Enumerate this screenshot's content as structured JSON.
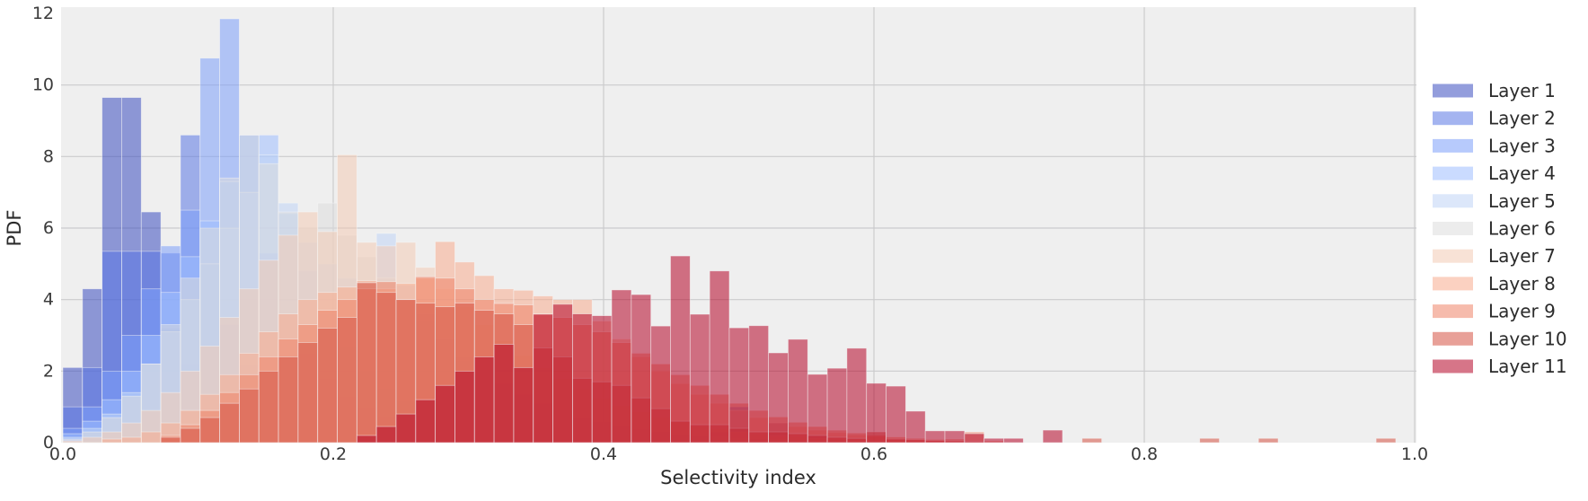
{
  "chart_data": {
    "type": "bar",
    "subtype": "overlapping-histograms",
    "title": "",
    "xlabel": "Selectivity index",
    "ylabel": "PDF",
    "xlim": [
      0.0,
      1.0
    ],
    "ylim": [
      0,
      12
    ],
    "xticks": {
      "values": [
        0.0,
        0.2,
        0.4,
        0.6,
        0.8,
        1.0
      ],
      "labels": [
        "0.0",
        "0.2",
        "0.4",
        "0.6",
        "0.8",
        "1.0"
      ]
    },
    "yticks": {
      "values": [
        0,
        2,
        4,
        6,
        8,
        10,
        12
      ],
      "labels": [
        "0",
        "2",
        "4",
        "6",
        "8",
        "10",
        "12"
      ]
    },
    "grid": true,
    "legend_position": "right",
    "bar_alpha": 0.55,
    "plot_bg": "#efefef",
    "grid_color": "#cbcbcd",
    "tick_color": "#3a3a3a",
    "bin_width": 0.0145,
    "series": [
      {
        "name": "Layer 1",
        "color": "#3b4cc0",
        "start": 0.0,
        "values": [
          2.1,
          4.3,
          9.65,
          9.65,
          6.45,
          3.2,
          2.2,
          1.5,
          1.05,
          0.75,
          0.55,
          0.4,
          0.3,
          0.25,
          0.2,
          0.15,
          0.12,
          0.1,
          0.08,
          0.07,
          0.06,
          0.05,
          0.05,
          0.04,
          0.04,
          0.03,
          0.03,
          0.02
        ]
      },
      {
        "name": "Layer 2",
        "color": "#5977e3",
        "start": 0.0,
        "values": [
          1.0,
          2.1,
          5.35,
          5.35,
          5.35,
          5.3,
          8.6,
          5.0,
          3.3,
          2.2,
          1.5,
          1.1,
          0.8,
          0.6,
          0.45,
          0.35,
          0.3,
          0.25,
          0.2,
          0.18,
          0.15,
          0.12,
          0.1,
          0.1,
          0.08,
          0.08,
          0.07,
          0.06,
          0.06,
          0.05,
          0.05,
          0.04,
          0.04,
          0.3,
          1.0,
          0.1,
          0.55,
          0.05,
          0.2,
          0.05
        ]
      },
      {
        "name": "Layer 3",
        "color": "#7b9ff9",
        "start": 0.0,
        "values": [
          0.4,
          1.0,
          2.0,
          3.0,
          4.3,
          5.5,
          6.5,
          10.75,
          11.85,
          8.6,
          5.3,
          3.6,
          2.5,
          1.8,
          1.3,
          1.0,
          0.75,
          0.6,
          0.5,
          0.4,
          0.32,
          0.26,
          0.2,
          0.17,
          0.14,
          0.11,
          0.09,
          0.08,
          0.06,
          0.05
        ]
      },
      {
        "name": "Layer 4",
        "color": "#9ebeff",
        "start": 0.0,
        "values": [
          0.25,
          0.6,
          1.2,
          2.0,
          3.0,
          4.2,
          5.2,
          6.2,
          7.3,
          8.6,
          8.6,
          6.4,
          4.8,
          3.6,
          2.7,
          2.0,
          1.5,
          1.15,
          0.9,
          0.7,
          0.55,
          0.45,
          0.36,
          0.3,
          0.24,
          0.2,
          0.16,
          0.13,
          0.1,
          0.09,
          0.07,
          0.06,
          0.05,
          0.04
        ]
      },
      {
        "name": "Layer 5",
        "color": "#c0d4f5",
        "start": 0.0,
        "values": [
          0.15,
          0.4,
          0.8,
          1.4,
          2.2,
          3.1,
          4.0,
          5.0,
          6.0,
          7.0,
          8.05,
          6.7,
          5.6,
          5.0,
          4.6,
          4.5,
          5.85,
          4.4,
          3.6,
          2.9,
          2.3,
          1.8,
          1.45,
          1.15,
          0.9,
          0.72,
          0.58,
          0.46,
          0.37,
          0.3,
          0.24,
          0.19,
          0.15,
          0.12,
          0.1,
          0.08
        ]
      },
      {
        "name": "Layer 6",
        "color": "#dddcdc",
        "start": 0.0,
        "values": [
          0.1,
          0.3,
          0.7,
          1.3,
          2.2,
          3.3,
          4.6,
          6.0,
          7.4,
          8.6,
          7.8,
          6.45,
          6.0,
          6.7,
          5.8,
          5.2,
          4.6,
          4.0,
          3.4,
          2.9,
          2.4,
          2.0,
          1.65,
          1.35,
          1.1,
          0.9,
          0.72,
          0.58,
          0.46,
          0.37,
          0.3,
          0.24,
          0.19,
          0.15,
          0.12,
          0.1,
          0.08,
          0.06,
          0.05,
          0.04
        ]
      },
      {
        "name": "Layer 7",
        "color": "#f2cab5",
        "start": 0.0,
        "values": [
          0.05,
          0.15,
          0.3,
          0.55,
          0.9,
          1.4,
          2.0,
          2.7,
          3.5,
          4.3,
          5.1,
          5.8,
          6.45,
          5.9,
          8.05,
          5.6,
          5.5,
          5.6,
          4.9,
          4.3,
          3.8,
          3.3,
          2.85,
          2.45,
          2.1,
          1.8,
          1.5,
          1.25,
          1.05,
          0.85,
          0.7,
          0.58,
          0.47,
          0.38,
          0.3,
          0.24,
          0.19,
          0.15,
          0.12,
          0.09,
          0.07,
          0.06,
          0.05,
          0.04
        ]
      },
      {
        "name": "Layer 8",
        "color": "#f7ac8e",
        "start": 0.029,
        "values": [
          0.1,
          0.15,
          0.3,
          0.55,
          0.9,
          1.35,
          1.9,
          2.5,
          3.1,
          3.6,
          4.0,
          4.2,
          4.35,
          4.53,
          4.3,
          4.45,
          4.6,
          5.62,
          5.05,
          4.67,
          4.3,
          4.26,
          4.1,
          4.0,
          4.0,
          3.4,
          2.9,
          2.4,
          2.0,
          1.65,
          1.35,
          1.1,
          0.9,
          0.7,
          0.55,
          0.45,
          0.35,
          0.28,
          0.22,
          0.17,
          0.13,
          0.1,
          0.08,
          0.06
        ]
      },
      {
        "name": "Layer 9",
        "color": "#ee8468",
        "start": 0.0725,
        "values": [
          0.2,
          0.5,
          0.9,
          1.4,
          1.9,
          2.4,
          2.9,
          3.3,
          3.7,
          4.0,
          4.3,
          4.5,
          4.0,
          4.64,
          4.6,
          4.3,
          4.0,
          3.89,
          3.85,
          3.6,
          3.5,
          3.3,
          3.1,
          2.8,
          2.5,
          2.2,
          1.9,
          1.6,
          1.35,
          1.1,
          0.9,
          0.72,
          0.57,
          0.45,
          0.35,
          0.27,
          0.21,
          0.16,
          0.12,
          0.09,
          0.1,
          0.3,
          0.05
        ]
      },
      {
        "name": "Layer 10",
        "color": "#d65244",
        "start": 0.0725,
        "values": [
          0.15,
          0.4,
          0.7,
          1.1,
          1.5,
          2.0,
          2.4,
          2.8,
          3.2,
          3.5,
          4.47,
          4.2,
          4.0,
          3.9,
          3.8,
          3.9,
          3.7,
          3.6,
          3.3,
          2.65,
          2.4,
          1.8,
          1.7,
          1.6,
          1.25,
          0.95,
          0.6,
          0.5,
          0.5,
          0.4,
          0.3,
          0.3,
          0.25,
          0.2,
          0.15,
          0.12,
          0.3,
          0.1,
          0.08,
          0.06,
          0.05,
          0.04,
          0,
          0,
          0,
          0,
          0,
          0.12,
          0,
          0,
          0,
          0,
          0,
          0.12,
          0,
          0,
          0.12,
          0,
          0,
          0,
          0,
          0,
          0.12
        ]
      },
      {
        "name": "Layer 11",
        "color": "#b40426",
        "start": 0.2175,
        "values": [
          0.2,
          0.45,
          0.8,
          1.2,
          1.6,
          2.0,
          2.4,
          2.75,
          2.1,
          3.59,
          3.87,
          3.6,
          3.55,
          4.27,
          4.14,
          3.26,
          5.22,
          3.59,
          4.8,
          3.21,
          3.27,
          2.51,
          2.89,
          1.91,
          2.08,
          2.64,
          1.66,
          1.58,
          0.88,
          0.33,
          0.33,
          0.25,
          0.12,
          0.12,
          0,
          0.35
        ]
      }
    ],
    "legend": [
      "Layer 1",
      "Layer 2",
      "Layer 3",
      "Layer 4",
      "Layer 5",
      "Layer 6",
      "Layer 7",
      "Layer 8",
      "Layer 9",
      "Layer 10",
      "Layer 11"
    ]
  }
}
